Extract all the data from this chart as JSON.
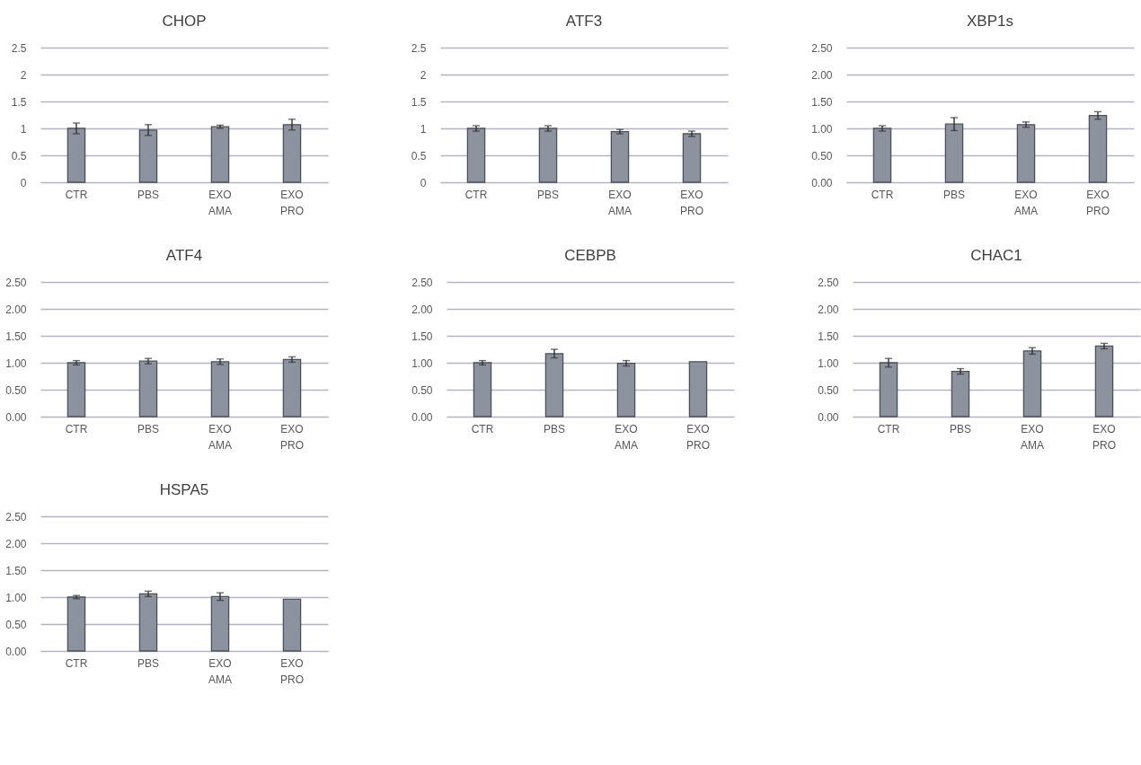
{
  "chart_data": [
    {
      "type": "bar",
      "title": "CHOP",
      "categories": [
        "CTR",
        "PBS",
        "EXO AMA",
        "EXO PRO"
      ],
      "values": [
        1.0,
        0.97,
        1.03,
        1.07
      ],
      "errors": [
        0.1,
        0.1,
        0.03,
        0.1
      ],
      "color": "#8c929e",
      "ylim": [
        0,
        2.5
      ],
      "yticks": [
        0,
        0.5,
        1,
        1.5,
        2,
        2.5
      ],
      "grid": "y"
    },
    {
      "type": "bar",
      "title": "ATF3",
      "categories": [
        "CTR",
        "PBS",
        "EXO AMA",
        "EXO PRO"
      ],
      "values": [
        1.0,
        1.0,
        0.94,
        0.9
      ],
      "errors": [
        0.05,
        0.05,
        0.04,
        0.05
      ],
      "color": "#8c929e",
      "ylim": [
        0,
        2.5
      ],
      "yticks": [
        0,
        0.5,
        1,
        1.5,
        2,
        2.5
      ],
      "grid": "y"
    },
    {
      "type": "bar",
      "title": "XBP1s",
      "categories": [
        "CTR",
        "PBS",
        "EXO AMA",
        "EXO PRO"
      ],
      "values": [
        1.0,
        1.08,
        1.07,
        1.24
      ],
      "errors": [
        0.05,
        0.12,
        0.05,
        0.07
      ],
      "color": "#8c929e",
      "ylim": [
        0,
        2.5
      ],
      "yticks": [
        {
          "value": 0,
          "label": "0.00"
        },
        {
          "value": 0.5,
          "label": "0.50"
        },
        {
          "value": 1,
          "label": "1.00"
        },
        {
          "value": 1.5,
          "label": "1.50"
        },
        {
          "value": 2,
          "label": "2.00"
        },
        {
          "value": 2.5,
          "label": "2.50"
        }
      ],
      "grid": "y"
    },
    {
      "type": "bar",
      "title": "ATF4",
      "categories": [
        "CTR",
        "PBS",
        "EXO AMA",
        "EXO PRO"
      ],
      "values": [
        1.0,
        1.03,
        1.02,
        1.06
      ],
      "errors": [
        0.04,
        0.05,
        0.05,
        0.05
      ],
      "color": "#8c929e",
      "ylim": [
        0,
        2.5
      ],
      "yticks": [
        {
          "value": 0,
          "label": "0.00"
        },
        {
          "value": 0.5,
          "label": "0.50"
        },
        {
          "value": 1,
          "label": "1.00"
        },
        {
          "value": 1.5,
          "label": "1.50"
        },
        {
          "value": 2,
          "label": "2.00"
        },
        {
          "value": 2.5,
          "label": "2.50"
        }
      ],
      "grid": "y"
    },
    {
      "type": "bar",
      "title": "CEBPB",
      "categories": [
        "CTR",
        "PBS",
        "EXO AMA",
        "EXO PRO"
      ],
      "values": [
        1.0,
        1.17,
        0.99,
        1.02
      ],
      "errors": [
        0.04,
        0.08,
        0.05,
        null
      ],
      "color": "#8c929e",
      "ylim": [
        0,
        2.5
      ],
      "yticks": [
        {
          "value": 0,
          "label": "0.00"
        },
        {
          "value": 0.5,
          "label": "0.50"
        },
        {
          "value": 1,
          "label": "1.00"
        },
        {
          "value": 1.5,
          "label": "1.50"
        },
        {
          "value": 2,
          "label": "2.00"
        },
        {
          "value": 2.5,
          "label": "2.50"
        }
      ],
      "grid": "y"
    },
    {
      "type": "bar",
      "title": "CHAC1",
      "categories": [
        "CTR",
        "PBS",
        "EXO AMA",
        "EXO PRO"
      ],
      "values": [
        1.0,
        0.84,
        1.22,
        1.31
      ],
      "errors": [
        0.08,
        0.05,
        0.06,
        0.05
      ],
      "color": "#8c929e",
      "ylim": [
        0,
        2.5
      ],
      "yticks": [
        {
          "value": 0,
          "label": "0.00"
        },
        {
          "value": 0.5,
          "label": "0.50"
        },
        {
          "value": 1,
          "label": "1.00"
        },
        {
          "value": 1.5,
          "label": "1.50"
        },
        {
          "value": 2,
          "label": "2.00"
        },
        {
          "value": 2.5,
          "label": "2.50"
        }
      ],
      "grid": "y"
    },
    {
      "type": "bar",
      "title": "HSPA5",
      "categories": [
        "CTR",
        "PBS",
        "EXO AMA",
        "EXO PRO"
      ],
      "values": [
        1.0,
        1.06,
        1.01,
        0.96
      ],
      "errors": [
        0.03,
        0.05,
        0.07,
        null
      ],
      "color": "#8c929e",
      "ylim": [
        0,
        2.5
      ],
      "yticks": [
        {
          "value": 0,
          "label": "0.00"
        },
        {
          "value": 0.5,
          "label": "0.50"
        },
        {
          "value": 1,
          "label": "1.00"
        },
        {
          "value": 1.5,
          "label": "1.50"
        },
        {
          "value": 2,
          "label": "2.00"
        },
        {
          "value": 2.5,
          "label": "2.50"
        }
      ],
      "grid": "y"
    }
  ]
}
